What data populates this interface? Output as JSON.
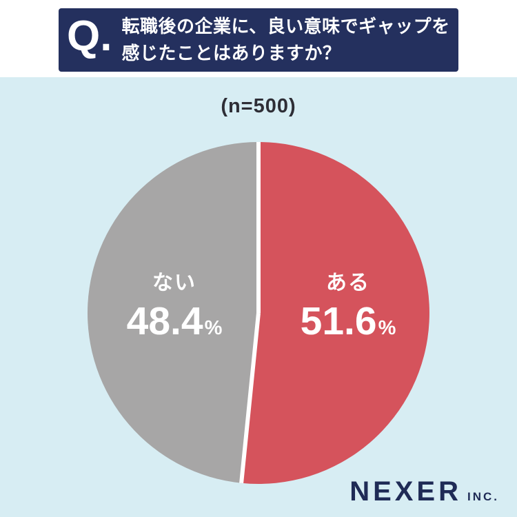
{
  "header": {
    "q_label": "Q.",
    "question_line1": "転職後の企業に、良い意味でギャップを",
    "question_line2": "感じたことはありますか？"
  },
  "chart": {
    "sample_label": "(n=500)",
    "percent_sign": "%"
  },
  "chart_data": {
    "type": "pie",
    "title": "転職後の企業に、良い意味でギャップを感じたことはありますか？",
    "sample_size_label": "(n=500)",
    "n": 500,
    "start_angle_deg": 0,
    "direction": "clockwise",
    "slices": [
      {
        "label": "ある",
        "value": 51.6,
        "color": "#d5535c"
      },
      {
        "label": "ない",
        "value": 48.4,
        "color": "#a7a6a6"
      }
    ],
    "divider_color": "#ffffff",
    "background_color": "#d7edf3"
  },
  "footer": {
    "brand": "NEXER",
    "brand_suffix": "INC."
  },
  "colors": {
    "header_navy": "#24305e",
    "body_blue": "#d7edf3",
    "slice_red": "#d5535c",
    "slice_gray": "#a7a6a6",
    "brand_navy": "#1f2b56"
  }
}
